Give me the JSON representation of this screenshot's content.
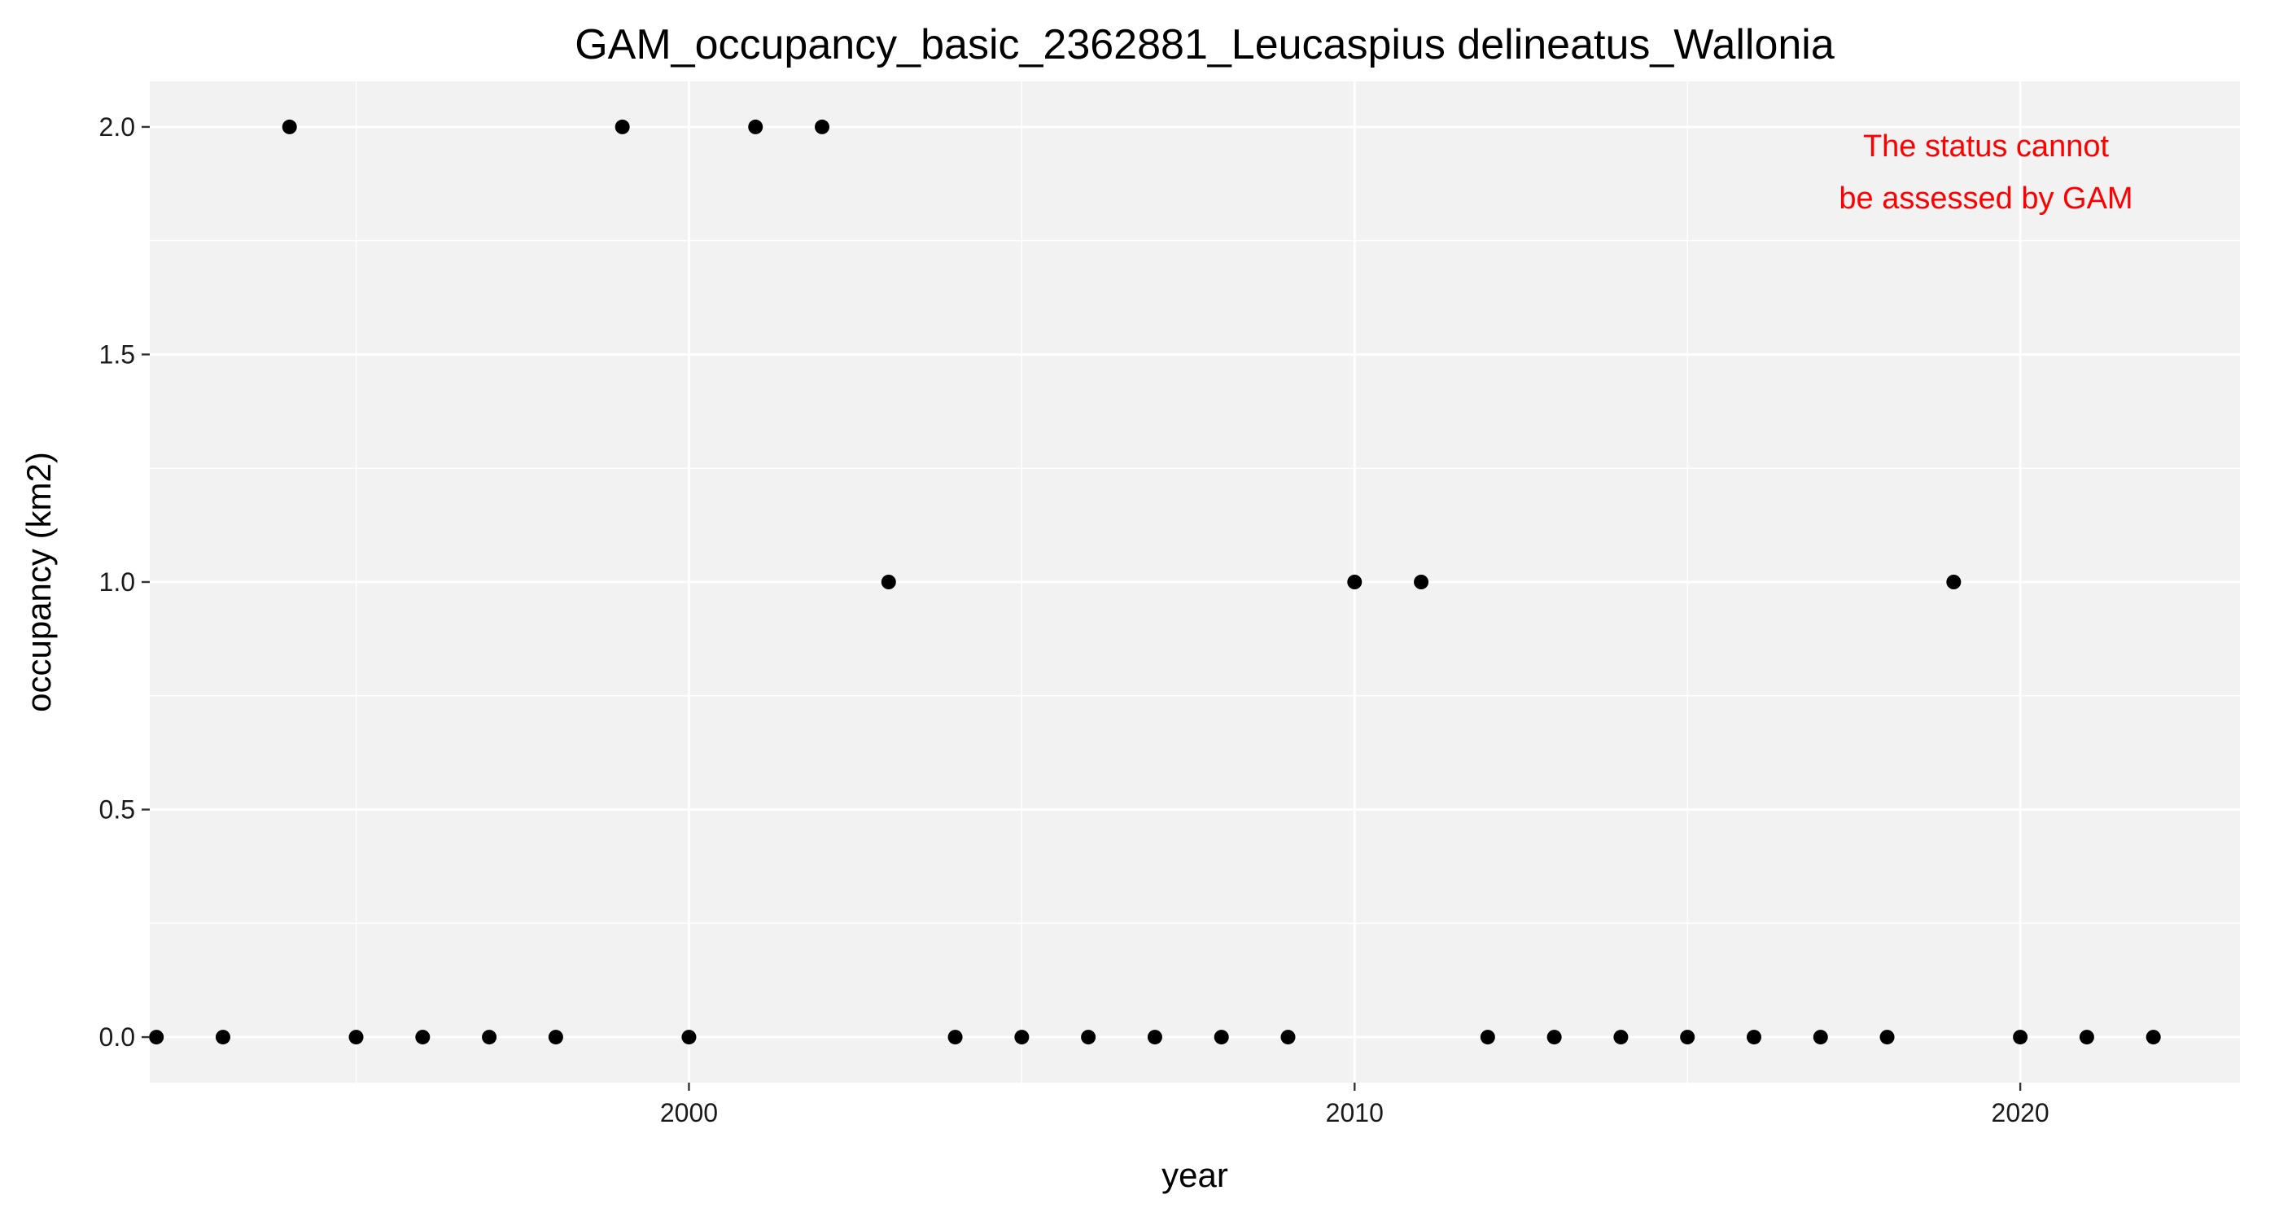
{
  "chart_data": {
    "type": "scatter",
    "title": "GAM_occupancy_basic_2362881_Leucaspius delineatus_Wallonia",
    "xlabel": "year",
    "ylabel": "occupancy (km2)",
    "xlim": [
      1991.9,
      2023.3
    ],
    "ylim": [
      -0.1,
      2.1
    ],
    "x_ticks": [
      2000,
      2010,
      2020
    ],
    "x_tick_labels": [
      "2000",
      "2010",
      "2020"
    ],
    "y_ticks": [
      0.0,
      0.5,
      1.0,
      1.5,
      2.0
    ],
    "y_tick_labels": [
      "0.0",
      "0.5",
      "1.0",
      "1.5",
      "2.0"
    ],
    "grid": true,
    "legend": "none",
    "x": [
      1992,
      1993,
      1994,
      1995,
      1996,
      1997,
      1998,
      1999,
      2000,
      2001,
      2002,
      2003,
      2004,
      2005,
      2006,
      2007,
      2008,
      2009,
      2010,
      2011,
      2012,
      2013,
      2014,
      2015,
      2016,
      2017,
      2018,
      2019,
      2020,
      2021,
      2022
    ],
    "y": [
      0,
      0,
      2,
      0,
      0,
      0,
      0,
      2,
      0,
      2,
      2,
      1,
      0,
      0,
      0,
      0,
      0,
      0,
      1,
      1,
      0,
      0,
      0,
      0,
      0,
      0,
      0,
      1,
      0,
      0,
      0
    ],
    "annotation": {
      "lines": [
        "The status cannot",
        "be assessed by GAM"
      ],
      "color": "#ff0000"
    },
    "colors": {
      "panel_background": "#f2f2f2",
      "grid_major": "#ffffff",
      "point": "#000000"
    }
  }
}
